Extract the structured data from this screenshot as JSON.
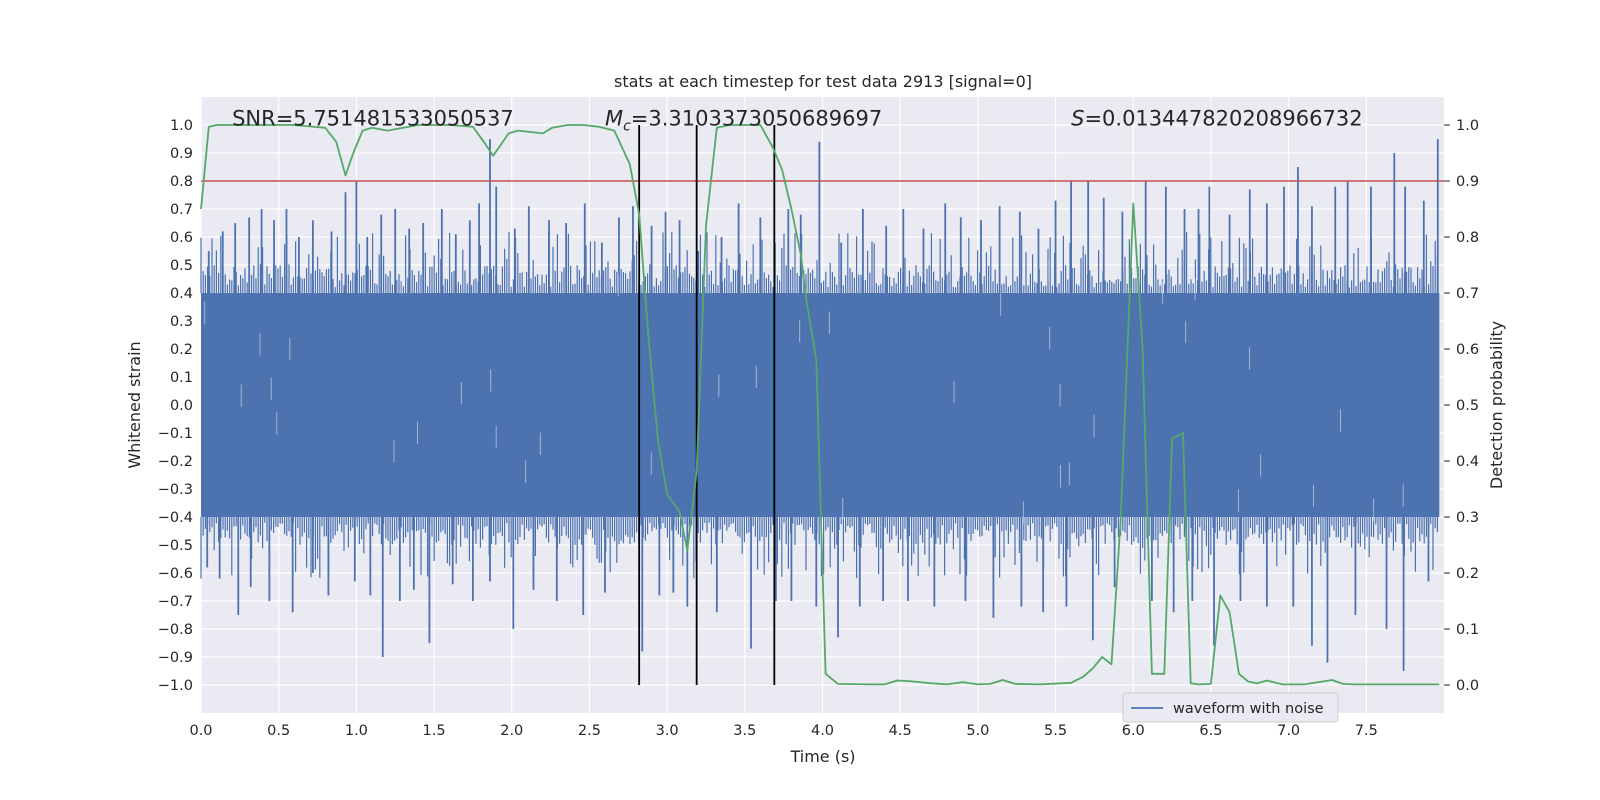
{
  "chart_data": {
    "type": "line",
    "title": "stats at each timestep for test data 2913 [signal=0]",
    "xlabel": "Time (s)",
    "ylabel": "Whitened strain",
    "ylabel_right": "Detection probability",
    "xlim": [
      0.0,
      8.0
    ],
    "ylim": [
      -1.1,
      1.1
    ],
    "ylim_right": [
      -0.05,
      1.05
    ],
    "x_ticks": [
      0.0,
      0.5,
      1.0,
      1.5,
      2.0,
      2.5,
      3.0,
      3.5,
      4.0,
      4.5,
      5.0,
      5.5,
      6.0,
      6.5,
      7.0,
      7.5
    ],
    "x_tick_labels": [
      "0.0",
      "0.5",
      "1.0",
      "1.5",
      "2.0",
      "2.5",
      "3.0",
      "3.5",
      "4.0",
      "4.5",
      "5.0",
      "5.5",
      "6.0",
      "6.5",
      "7.0",
      "7.5"
    ],
    "y_ticks": [
      1.0,
      0.9,
      0.8,
      0.7,
      0.6,
      0.5,
      0.4,
      0.3,
      0.2,
      0.1,
      0.0,
      -0.1,
      -0.2,
      -0.3,
      -0.4,
      -0.5,
      -0.6,
      -0.7,
      -0.8,
      -0.9,
      -1.0
    ],
    "y_tick_labels": [
      "1.0",
      "0.9",
      "0.8",
      "0.7",
      "0.6",
      "0.5",
      "0.4",
      "0.3",
      "0.2",
      "0.1",
      "0.0",
      "−0.1",
      "−0.2",
      "−0.3",
      "−0.4",
      "−0.5",
      "−0.6",
      "−0.7",
      "−0.8",
      "−0.9",
      "−1.0"
    ],
    "y_right_ticks": [
      1.0,
      0.9,
      0.8,
      0.7,
      0.6,
      0.5,
      0.4,
      0.3,
      0.2,
      0.1,
      0.0
    ],
    "y_right_tick_labels": [
      "1.0",
      "0.9",
      "0.8",
      "0.7",
      "0.6",
      "0.5",
      "0.4",
      "0.3",
      "0.2",
      "0.1",
      "0.0"
    ],
    "annotations": [
      {
        "key": "snr",
        "text": "SNR=5.751481533050537",
        "x": 0.2,
        "y": 1.03
      },
      {
        "key": "mc",
        "prefix": "M",
        "sub": "c",
        "text": "=3.310337305068969​7",
        "x": 2.6,
        "y": 1.03
      },
      {
        "key": "s",
        "prefix": "S",
        "text": "=0.013447820208966732",
        "x": 5.6,
        "y": 1.03
      }
    ],
    "threshold": {
      "y_right": 0.9,
      "color": "#c44e52"
    },
    "vlines": {
      "x": [
        2.82,
        3.19,
        3.69
      ],
      "y_range": [
        -1.0,
        1.0
      ],
      "color": "#000000"
    },
    "legend": {
      "label": "waveform with noise",
      "position": "lower-right",
      "color": "#4c72b0"
    },
    "series": [
      {
        "name": "waveform with noise",
        "axis": "left",
        "color": "#4c72b0",
        "kind": "noise-band",
        "band": [
          -0.4,
          0.4
        ],
        "note": "dense whitened noise, envelope approx ±0.4 with spikes",
        "spikes_up": [
          [
            0.05,
            0.55
          ],
          [
            0.14,
            0.62
          ],
          [
            0.22,
            0.65
          ],
          [
            0.31,
            0.67
          ],
          [
            0.39,
            0.7
          ],
          [
            0.47,
            0.66
          ],
          [
            0.55,
            0.7
          ],
          [
            0.63,
            0.6
          ],
          [
            0.72,
            0.66
          ],
          [
            0.84,
            0.62
          ],
          [
            0.93,
            0.76
          ],
          [
            1.0,
            0.8
          ],
          [
            1.07,
            0.6
          ],
          [
            1.16,
            0.68
          ],
          [
            1.25,
            0.7
          ],
          [
            1.34,
            0.63
          ],
          [
            1.43,
            0.65
          ],
          [
            1.55,
            0.7
          ],
          [
            1.64,
            0.61
          ],
          [
            1.73,
            0.66
          ],
          [
            1.79,
            0.72
          ],
          [
            1.86,
            0.95
          ],
          [
            1.9,
            0.78
          ],
          [
            2.02,
            0.63
          ],
          [
            2.11,
            0.71
          ],
          [
            2.24,
            0.66
          ],
          [
            2.35,
            0.65
          ],
          [
            2.47,
            0.72
          ],
          [
            2.58,
            0.58
          ],
          [
            2.69,
            0.67
          ],
          [
            2.78,
            0.71
          ],
          [
            2.9,
            0.64
          ],
          [
            2.99,
            0.69
          ],
          [
            3.08,
            0.66
          ],
          [
            3.2,
            0.55
          ],
          [
            3.35,
            0.6
          ],
          [
            3.46,
            0.72
          ],
          [
            3.6,
            0.67
          ],
          [
            3.78,
            0.7
          ],
          [
            3.86,
            0.68
          ],
          [
            3.98,
            0.94
          ],
          [
            4.12,
            0.58
          ],
          [
            4.26,
            0.7
          ],
          [
            4.41,
            0.64
          ],
          [
            4.52,
            0.7
          ],
          [
            4.65,
            0.63
          ],
          [
            4.79,
            0.72
          ],
          [
            4.89,
            0.67
          ],
          [
            5.02,
            0.66
          ],
          [
            5.14,
            0.71
          ],
          [
            5.27,
            0.69
          ],
          [
            5.39,
            0.63
          ],
          [
            5.5,
            0.73
          ],
          [
            5.6,
            0.8
          ],
          [
            5.71,
            0.8
          ],
          [
            5.81,
            0.74
          ],
          [
            5.93,
            0.69
          ],
          [
            6.08,
            0.8
          ],
          [
            6.21,
            0.78
          ],
          [
            6.33,
            0.7
          ],
          [
            6.42,
            0.7
          ],
          [
            6.49,
            0.78
          ],
          [
            6.62,
            0.68
          ],
          [
            6.75,
            0.77
          ],
          [
            6.86,
            0.72
          ],
          [
            6.97,
            0.78
          ],
          [
            7.06,
            0.85
          ],
          [
            7.15,
            0.71
          ],
          [
            7.3,
            0.78
          ],
          [
            7.38,
            0.8
          ],
          [
            7.53,
            0.78
          ],
          [
            7.68,
            0.9
          ],
          [
            7.75,
            0.78
          ],
          [
            7.87,
            0.73
          ],
          [
            7.96,
            0.95
          ]
        ],
        "spikes_down": [
          [
            0.04,
            -0.58
          ],
          [
            0.12,
            -0.62
          ],
          [
            0.24,
            -0.75
          ],
          [
            0.32,
            -0.65
          ],
          [
            0.44,
            -0.7
          ],
          [
            0.59,
            -0.74
          ],
          [
            0.72,
            -0.6
          ],
          [
            0.82,
            -0.68
          ],
          [
            0.99,
            -0.63
          ],
          [
            1.09,
            -0.68
          ],
          [
            1.17,
            -0.9
          ],
          [
            1.28,
            -0.7
          ],
          [
            1.37,
            -0.66
          ],
          [
            1.47,
            -0.85
          ],
          [
            1.62,
            -0.64
          ],
          [
            1.75,
            -0.7
          ],
          [
            1.86,
            -0.63
          ],
          [
            2.01,
            -0.8
          ],
          [
            2.14,
            -0.66
          ],
          [
            2.29,
            -0.7
          ],
          [
            2.46,
            -0.75
          ],
          [
            2.6,
            -0.67
          ],
          [
            2.84,
            -0.88
          ],
          [
            2.95,
            -0.68
          ],
          [
            3.04,
            -0.67
          ],
          [
            3.13,
            -0.72
          ],
          [
            3.32,
            -0.74
          ],
          [
            3.54,
            -0.87
          ],
          [
            3.7,
            -0.7
          ],
          [
            3.8,
            -0.7
          ],
          [
            3.96,
            -0.72
          ],
          [
            4.1,
            -0.83
          ],
          [
            4.24,
            -0.72
          ],
          [
            4.39,
            -0.7
          ],
          [
            4.55,
            -0.7
          ],
          [
            4.72,
            -0.72
          ],
          [
            4.92,
            -0.7
          ],
          [
            5.1,
            -0.76
          ],
          [
            5.28,
            -0.72
          ],
          [
            5.42,
            -0.74
          ],
          [
            5.57,
            -0.72
          ],
          [
            5.74,
            -0.84
          ],
          [
            5.88,
            -0.65
          ],
          [
            6.12,
            -0.7
          ],
          [
            6.26,
            -0.74
          ],
          [
            6.38,
            -0.7
          ],
          [
            6.52,
            -0.86
          ],
          [
            6.69,
            -0.7
          ],
          [
            6.86,
            -0.72
          ],
          [
            7.03,
            -0.72
          ],
          [
            7.15,
            -0.86
          ],
          [
            7.25,
            -0.92
          ],
          [
            7.43,
            -0.75
          ],
          [
            7.63,
            -0.8
          ],
          [
            7.74,
            -0.95
          ],
          [
            7.9,
            -0.63
          ]
        ]
      },
      {
        "name": "Detection probability",
        "axis": "right",
        "color": "#55a868",
        "x": [
          0.0,
          0.05,
          0.1,
          0.2,
          0.4,
          0.6,
          0.8,
          0.87,
          0.93,
          0.98,
          1.04,
          1.1,
          1.2,
          1.4,
          1.6,
          1.75,
          1.82,
          1.88,
          1.93,
          1.98,
          2.04,
          2.2,
          2.26,
          2.36,
          2.46,
          2.56,
          2.66,
          2.76,
          2.82,
          2.88,
          2.94,
          3.0,
          3.08,
          3.13,
          3.19,
          3.25,
          3.32,
          3.4,
          3.5,
          3.6,
          3.68,
          3.74,
          3.8,
          3.86,
          3.9,
          3.96,
          4.02,
          4.1,
          4.3,
          4.4,
          4.48,
          4.56,
          4.7,
          4.8,
          4.9,
          5.0,
          5.08,
          5.16,
          5.24,
          5.4,
          5.6,
          5.68,
          5.74,
          5.8,
          5.86,
          5.92,
          6.0,
          6.06,
          6.12,
          6.2,
          6.25,
          6.32,
          6.37,
          6.42,
          6.5,
          6.56,
          6.62,
          6.68,
          6.74,
          6.8,
          6.86,
          6.96,
          7.1,
          7.28,
          7.35,
          7.42,
          7.5,
          7.6,
          7.97
        ],
        "y": [
          0.85,
          0.997,
          1.0,
          1.0,
          1.0,
          1.0,
          0.995,
          0.97,
          0.91,
          0.95,
          0.99,
          0.995,
          0.99,
          1.0,
          1.0,
          0.997,
          0.97,
          0.945,
          0.965,
          0.985,
          0.99,
          0.985,
          0.995,
          1.0,
          1.0,
          0.997,
          0.99,
          0.93,
          0.84,
          0.62,
          0.44,
          0.34,
          0.31,
          0.24,
          0.38,
          0.82,
          0.995,
          1.0,
          1.0,
          1.0,
          0.96,
          0.92,
          0.85,
          0.77,
          0.68,
          0.58,
          0.02,
          0.002,
          0.001,
          0.001,
          0.008,
          0.007,
          0.003,
          0.001,
          0.005,
          0.001,
          0.002,
          0.009,
          0.002,
          0.001,
          0.004,
          0.015,
          0.03,
          0.05,
          0.037,
          0.3,
          0.86,
          0.6,
          0.02,
          0.02,
          0.44,
          0.45,
          0.003,
          0.001,
          0.002,
          0.16,
          0.13,
          0.02,
          0.006,
          0.003,
          0.008,
          0.001,
          0.001,
          0.009,
          0.002,
          0.001,
          0.001,
          0.001,
          0.001
        ]
      }
    ]
  }
}
